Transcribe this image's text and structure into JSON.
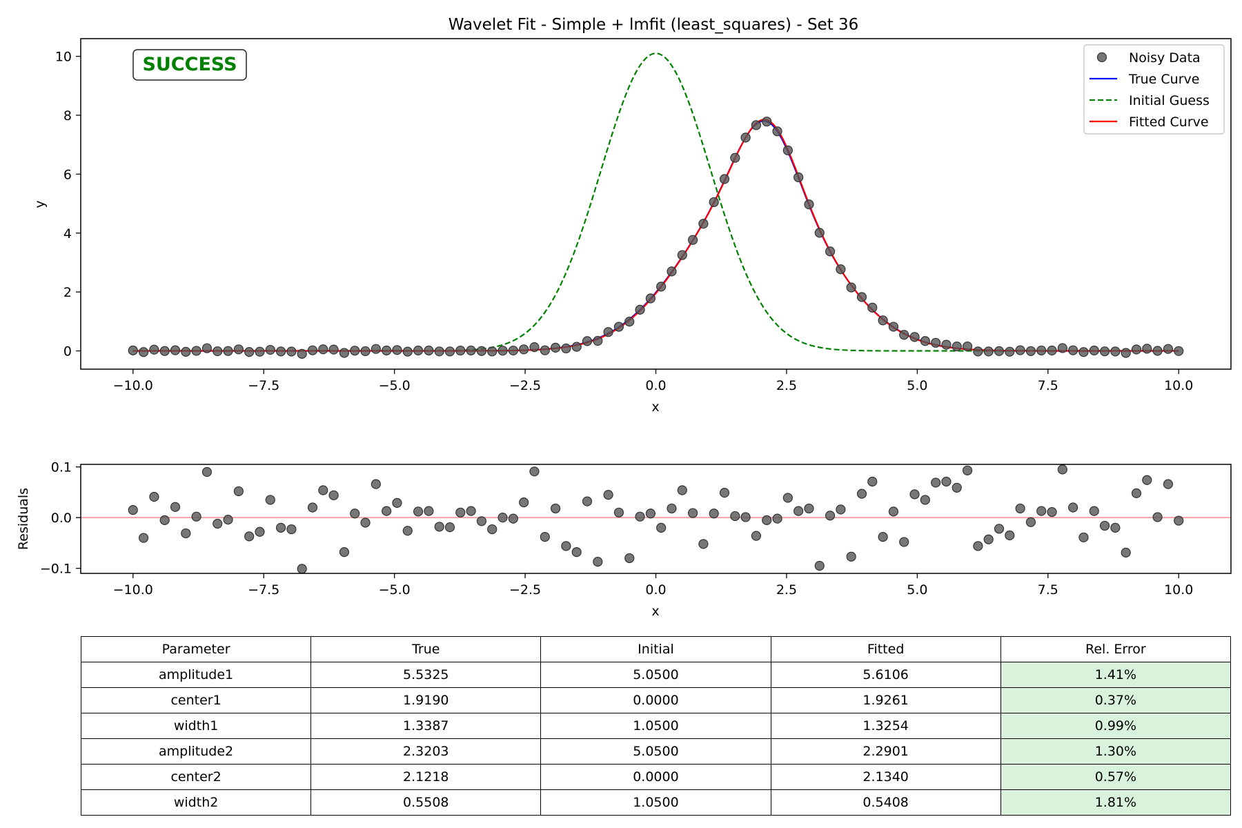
{
  "figure": {
    "title": "Wavelet Fit - Simple + lmfit (least_squares) - Set 36",
    "status_badge": "SUCCESS",
    "colors": {
      "noisy": "#555555",
      "true": "#0000ff",
      "initial": "#008000",
      "fitted": "#ff0000",
      "zero_line": "#f4a5a5",
      "success_text": "#008000",
      "good_error_bg": "#d8f2dc"
    }
  },
  "chart_data": [
    {
      "type": "line",
      "title": "Wavelet Fit - Simple + lmfit (least_squares) - Set 36",
      "xlabel": "x",
      "ylabel": "y",
      "xlim": [
        -11,
        11
      ],
      "ylim": [
        -0.62,
        10.6
      ],
      "x_ticks": [
        -10,
        -7.5,
        -5,
        -2.5,
        0,
        2.5,
        5,
        7.5,
        10
      ],
      "x_tick_labels": [
        "−10.0",
        "−7.5",
        "−5.0",
        "−2.5",
        "0.0",
        "2.5",
        "5.0",
        "7.5",
        "10.0"
      ],
      "y_ticks": [
        0,
        2,
        4,
        6,
        8,
        10
      ],
      "y_tick_labels": [
        "0",
        "2",
        "4",
        "6",
        "8",
        "10"
      ],
      "grid": false,
      "legend_position": "top-right",
      "series": [
        {
          "name": "Noisy Data",
          "style": "markers",
          "model": "true_plus_residuals"
        },
        {
          "name": "True Curve",
          "style": "solid",
          "model": "two_gaussians",
          "params": {
            "amplitude1": 5.5325,
            "center1": 1.919,
            "width1": 1.3387,
            "amplitude2": 2.3203,
            "center2": 2.1218,
            "width2": 0.5508
          }
        },
        {
          "name": "Initial Guess",
          "style": "dashed",
          "model": "two_gaussians",
          "params": {
            "amplitude1": 5.05,
            "center1": 0.0,
            "width1": 1.05,
            "amplitude2": 5.05,
            "center2": 0.0,
            "width2": 1.05
          }
        },
        {
          "name": "Fitted Curve",
          "style": "solid",
          "model": "two_gaussians",
          "params": {
            "amplitude1": 5.6106,
            "center1": 1.9261,
            "width1": 1.3254,
            "amplitude2": 2.2901,
            "center2": 2.134,
            "width2": 0.5408
          }
        }
      ]
    },
    {
      "type": "scatter",
      "title": "",
      "xlabel": "x",
      "ylabel": "Residuals",
      "xlim": [
        -11,
        11
      ],
      "ylim": [
        -0.11,
        0.105
      ],
      "x_ticks": [
        -10,
        -7.5,
        -5,
        -2.5,
        0,
        2.5,
        5,
        7.5,
        10
      ],
      "x_tick_labels": [
        "−10.0",
        "−7.5",
        "−5.0",
        "−2.5",
        "0.0",
        "2.5",
        "5.0",
        "7.5",
        "10.0"
      ],
      "y_ticks": [
        -0.1,
        0,
        0.1
      ],
      "y_tick_labels": [
        "−0.1",
        "0.0",
        "0.1"
      ],
      "reference_line_y": 0,
      "x_start": -10,
      "x_step": 0.20202,
      "residuals": [
        0.015,
        -0.04,
        0.041,
        -0.005,
        0.021,
        -0.031,
        0.002,
        0.09,
        -0.012,
        -0.004,
        0.052,
        -0.037,
        -0.028,
        0.035,
        -0.02,
        -0.023,
        -0.101,
        0.02,
        0.054,
        0.044,
        -0.068,
        0.008,
        -0.01,
        0.066,
        0.013,
        0.029,
        -0.026,
        0.012,
        0.013,
        -0.018,
        -0.019,
        0.01,
        0.013,
        -0.007,
        -0.023,
        0.0,
        -0.002,
        0.03,
        0.091,
        -0.038,
        0.018,
        -0.056,
        -0.068,
        0.032,
        -0.087,
        0.045,
        0.01,
        -0.08,
        0.002,
        0.008,
        -0.02,
        0.018,
        0.054,
        0.009,
        -0.052,
        0.008,
        0.049,
        0.003,
        0.001,
        -0.036,
        -0.005,
        -0.002,
        0.039,
        0.013,
        0.018,
        -0.095,
        0.004,
        0.016,
        -0.077,
        0.047,
        0.071,
        -0.038,
        0.012,
        -0.048,
        0.046,
        0.035,
        0.069,
        0.071,
        0.059,
        0.093,
        -0.056,
        -0.043,
        -0.022,
        -0.035,
        0.018,
        -0.009,
        0.013,
        0.011,
        0.095,
        0.02,
        -0.039,
        0.013,
        -0.016,
        -0.02,
        -0.069,
        0.048,
        0.074,
        0.001,
        0.066,
        -0.006
      ]
    },
    {
      "type": "table",
      "columns": [
        "Parameter",
        "True",
        "Initial",
        "Fitted",
        "Rel. Error"
      ],
      "rows": [
        [
          "amplitude1",
          "5.5325",
          "5.0500",
          "5.6106",
          "1.41%"
        ],
        [
          "center1",
          "1.9190",
          "0.0000",
          "1.9261",
          "0.37%"
        ],
        [
          "width1",
          "1.3387",
          "1.0500",
          "1.3254",
          "0.99%"
        ],
        [
          "amplitude2",
          "2.3203",
          "5.0500",
          "2.2901",
          "1.30%"
        ],
        [
          "center2",
          "2.1218",
          "0.0000",
          "2.1340",
          "0.57%"
        ],
        [
          "width2",
          "0.5508",
          "1.0500",
          "0.5408",
          "1.81%"
        ]
      ]
    }
  ]
}
